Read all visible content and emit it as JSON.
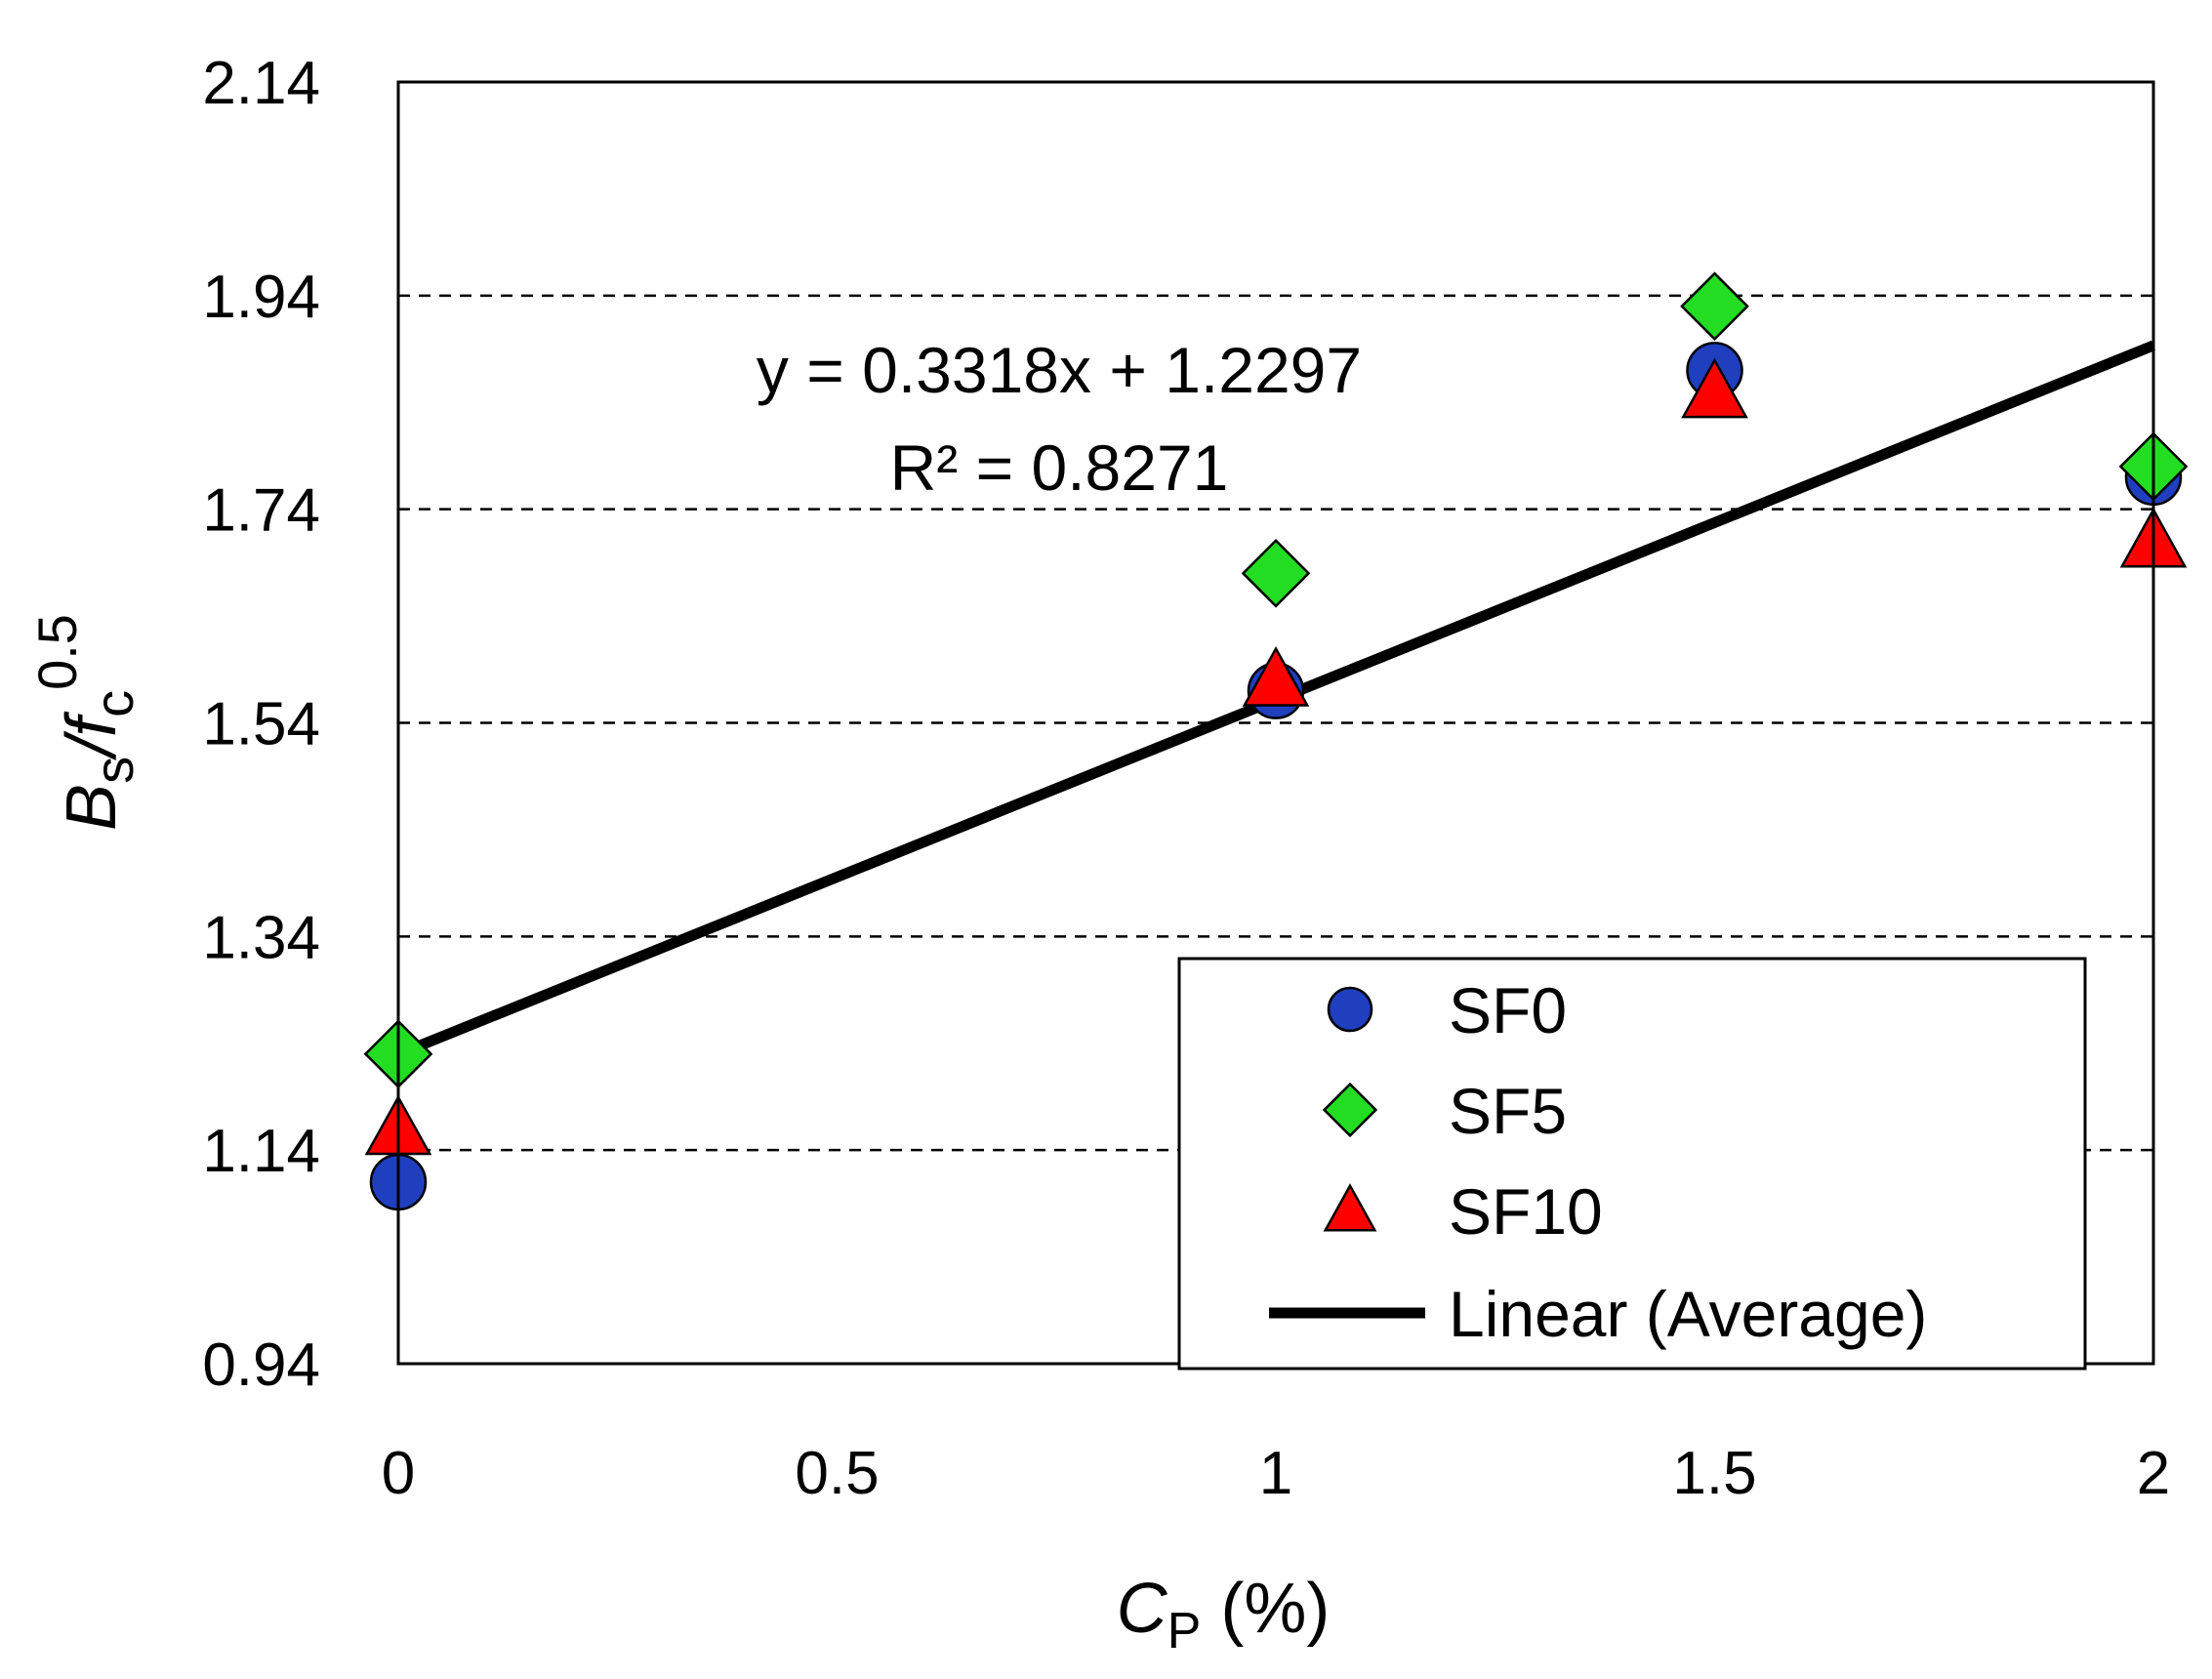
{
  "chart_data": {
    "type": "scatter",
    "title": "",
    "xlabel": {
      "symbol": "C",
      "subscript": "P",
      "unit": " (%)"
    },
    "ylabel": {
      "base": "B",
      "base_sub": "s",
      "slash": "/",
      "symbol": "f",
      "symbol_sub": "c",
      "sup": "0.5"
    },
    "xlim": [
      0,
      2
    ],
    "ylim": [
      0.94,
      2.14
    ],
    "x_ticks": [
      0,
      0.5,
      1,
      1.5,
      2
    ],
    "x_tick_labels": [
      "0",
      "0.5",
      "1",
      "1.5",
      "2"
    ],
    "y_ticks": [
      0.94,
      1.14,
      1.34,
      1.54,
      1.74,
      1.94,
      2.14
    ],
    "y_tick_labels": [
      "0.94",
      "1.14",
      "1.34",
      "1.54",
      "1.74",
      "1.94",
      "2.14"
    ],
    "grid": "horizontal dashed",
    "series": [
      {
        "name": "SF0",
        "marker": "circle",
        "color": "#1f3fbf",
        "x": [
          0,
          1,
          1.5,
          2
        ],
        "y": [
          1.11,
          1.57,
          1.87,
          1.77
        ]
      },
      {
        "name": "SF5",
        "marker": "diamond",
        "color": "#22dd22",
        "x": [
          0,
          1,
          1.5,
          2
        ],
        "y": [
          1.23,
          1.68,
          1.93,
          1.78
        ]
      },
      {
        "name": "SF10",
        "marker": "triangle",
        "color": "#ff0000",
        "x": [
          0,
          1,
          1.5,
          2
        ],
        "y": [
          1.16,
          1.58,
          1.85,
          1.71
        ]
      }
    ],
    "trendline": {
      "name": "Linear (Average)",
      "slope": 0.3318,
      "intercept": 1.2297,
      "color": "#000000"
    },
    "annotations": {
      "equation": "y = 0.3318x + 1.2297",
      "r2": "R² = 0.8271"
    },
    "legend_position": "bottom-right"
  }
}
